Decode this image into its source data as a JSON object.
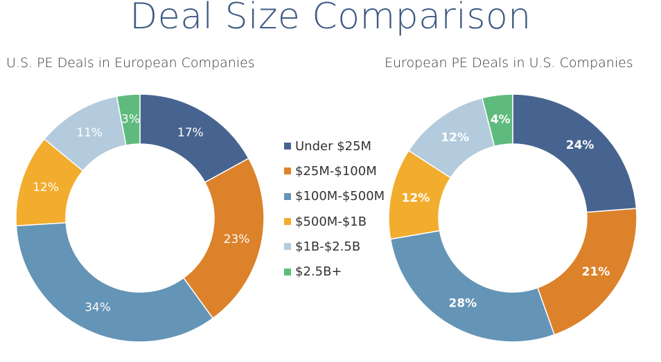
{
  "page": {
    "title": "Deal Size Comparison"
  },
  "colors": {
    "Under $25M": "#46648f",
    "$25M-$100M": "#dc822b",
    "$100M-$500M": "#6494b6",
    "$500M-$1B": "#f2ac2e",
    "$1B-$2.5B": "#b3cbdc",
    "$2.5B+": "#5fbb7d"
  },
  "chart_data": [
    {
      "type": "pie",
      "title": "U.S. PE Deals in European Companies",
      "categories": [
        "Under $25M",
        "$25M-$100M",
        "$100M-$500M",
        "$500M-$1B",
        "$1B-$2.5B",
        "$2.5B+"
      ],
      "values": [
        17,
        23,
        34,
        12,
        11,
        3
      ],
      "labels": [
        "17%",
        "23%",
        "34%",
        "12%",
        "11%",
        "3%"
      ],
      "label_weight": "normal"
    },
    {
      "type": "pie",
      "title": "European PE Deals in U.S. Companies",
      "categories": [
        "Under $25M",
        "$25M-$100M",
        "$100M-$500M",
        "$500M-$1B",
        "$1B-$2.5B",
        "$2.5B+"
      ],
      "values": [
        24,
        21,
        28,
        12,
        12,
        4
      ],
      "labels": [
        "24%",
        "21%",
        "28%",
        "12%",
        "12%",
        "4%"
      ],
      "label_weight": "bold"
    }
  ],
  "legend": {
    "placement": "center",
    "items": [
      "Under $25M",
      "$25M-$100M",
      "$100M-$500M",
      "$500M-$1B",
      "$1B-$2.5B",
      "$2.5B+"
    ]
  }
}
